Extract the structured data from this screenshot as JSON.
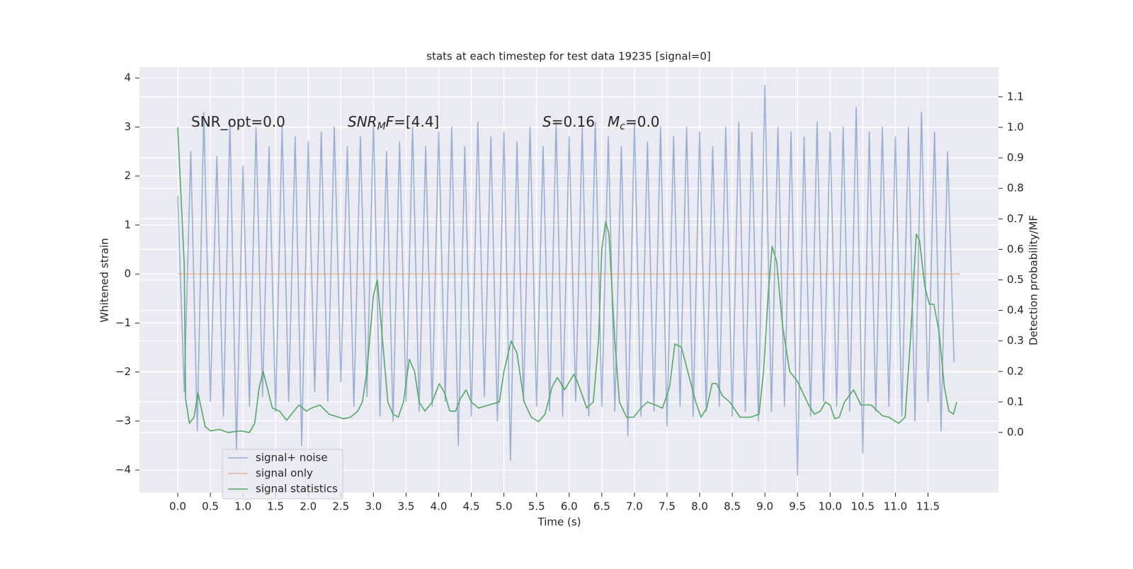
{
  "chart_data": {
    "type": "line",
    "title": "stats at each timestep for test data 19235 [signal=0]",
    "xlabel": "Time (s)",
    "ylabel": "Whitened strain",
    "y2label": "Detection probability/MF",
    "annotations": [
      [
        {
          "text": "SNR_opt=0.0"
        }
      ],
      [
        {
          "text": "SNR",
          "italic": true
        },
        {
          "text": "M",
          "italic": true,
          "sub": true
        },
        {
          "text": "F",
          "italic": true
        },
        {
          "text": "=[4.4]"
        }
      ],
      [
        {
          "text": "S",
          "italic": true
        },
        {
          "text": "=0.16"
        }
      ],
      [
        {
          "text": "M",
          "italic": true
        },
        {
          "text": "c",
          "italic": true,
          "sub": true
        },
        {
          "text": "=0.0"
        }
      ]
    ],
    "xlim": [
      -0.586,
      12.58
    ],
    "ylim": [
      -4.46,
      4.22
    ],
    "y2lim": [
      -0.197,
      1.197
    ],
    "xticks": [
      {
        "value": 0,
        "label": "0.0"
      },
      {
        "value": 0.5,
        "label": "0.5"
      },
      {
        "value": 1,
        "label": "1.0"
      },
      {
        "value": 1.5,
        "label": "1.5"
      },
      {
        "value": 2,
        "label": "2.0"
      },
      {
        "value": 2.5,
        "label": "2.5"
      },
      {
        "value": 3,
        "label": "3.0"
      },
      {
        "value": 3.5,
        "label": "3.5"
      },
      {
        "value": 4,
        "label": "4.0"
      },
      {
        "value": 4.5,
        "label": "4.5"
      },
      {
        "value": 5,
        "label": "5.0"
      },
      {
        "value": 5.5,
        "label": "5.5"
      },
      {
        "value": 6,
        "label": "6.0"
      },
      {
        "value": 6.5,
        "label": "6.5"
      },
      {
        "value": 7,
        "label": "7.0"
      },
      {
        "value": 7.5,
        "label": "7.5"
      },
      {
        "value": 8,
        "label": "8.0"
      },
      {
        "value": 8.5,
        "label": "8.5"
      },
      {
        "value": 9,
        "label": "9.0"
      },
      {
        "value": 9.5,
        "label": "9.5"
      },
      {
        "value": 10,
        "label": "10.0"
      },
      {
        "value": 10.5,
        "label": "10.5"
      },
      {
        "value": 11,
        "label": "11.0"
      },
      {
        "value": 11.5,
        "label": "11.5"
      }
    ],
    "yticks": [
      {
        "value": -4,
        "label": "−4"
      },
      {
        "value": -3,
        "label": "−3"
      },
      {
        "value": -2,
        "label": "−2"
      },
      {
        "value": -1,
        "label": "−1"
      },
      0,
      1,
      2,
      3,
      4
    ],
    "y2ticks": [
      {
        "value": 0,
        "label": "0.0"
      },
      {
        "value": 0.1,
        "label": "0.1"
      },
      {
        "value": 0.2,
        "label": "0.2"
      },
      {
        "value": 0.3,
        "label": "0.3"
      },
      {
        "value": 0.4,
        "label": "0.4"
      },
      {
        "value": 0.5,
        "label": "0.5"
      },
      {
        "value": 0.6,
        "label": "0.6"
      },
      {
        "value": 0.7,
        "label": "0.7"
      },
      {
        "value": 0.8,
        "label": "0.8"
      },
      {
        "value": 0.9,
        "label": "0.9"
      },
      {
        "value": 1,
        "label": "1.0"
      },
      {
        "value": 1.1,
        "label": "1.1"
      }
    ],
    "grid": true,
    "legend": "lower left",
    "series": [
      {
        "name": "signal+ noise",
        "color": "#4c72b0",
        "alpha": 0.5,
        "x": [
          0,
          0.1,
          0.2,
          0.3,
          0.4,
          0.5,
          0.6,
          0.7,
          0.8,
          0.9,
          1,
          1.1,
          1.2,
          1.3,
          1.4,
          1.5,
          1.6,
          1.7,
          1.8,
          1.9,
          2,
          2.1,
          2.2,
          2.3,
          2.4,
          2.5,
          2.6,
          2.7,
          2.8,
          2.9,
          3,
          3.1,
          3.2,
          3.3,
          3.4,
          3.5,
          3.6,
          3.7,
          3.8,
          3.9,
          4,
          4.1,
          4.2,
          4.3,
          4.4,
          4.5,
          4.6,
          4.7,
          4.8,
          4.9,
          5,
          5.1,
          5.2,
          5.3,
          5.4,
          5.5,
          5.6,
          5.7,
          5.8,
          5.9,
          6,
          6.1,
          6.2,
          6.3,
          6.4,
          6.5,
          6.6,
          6.7,
          6.8,
          6.9,
          7,
          7.1,
          7.2,
          7.3,
          7.4,
          7.5,
          7.6,
          7.7,
          7.8,
          7.9,
          8,
          8.1,
          8.2,
          8.3,
          8.4,
          8.5,
          8.6,
          8.7,
          8.8,
          8.9,
          9,
          9.1,
          9.2,
          9.3,
          9.4,
          9.5,
          9.6,
          9.7,
          9.8,
          9.9,
          10,
          10.1,
          10.2,
          10.3,
          10.4,
          10.5,
          10.6,
          10.7,
          10.8,
          10.9,
          11,
          11.1,
          11.2,
          11.3,
          11.4,
          11.5,
          11.6,
          11.7,
          11.8,
          11.9
        ],
        "values": [
          1.6,
          -2.4,
          2.5,
          -3.2,
          3.3,
          -2.6,
          2.4,
          -2.9,
          3.1,
          -3.6,
          2.2,
          -2.7,
          3.0,
          -2.5,
          2.6,
          -2.8,
          3.0,
          -2.6,
          2.8,
          -3.5,
          2.7,
          -2.4,
          2.9,
          -2.6,
          3.0,
          -2.2,
          2.6,
          -2.7,
          2.8,
          -2.5,
          3.1,
          -2.9,
          2.5,
          -3.0,
          2.7,
          -2.6,
          3.0,
          -2.8,
          2.6,
          -2.7,
          2.9,
          -2.6,
          3.0,
          -3.5,
          2.6,
          -2.9,
          3.1,
          -2.5,
          2.8,
          -3.0,
          2.9,
          -3.8,
          2.7,
          -2.6,
          3.0,
          -2.7,
          2.6,
          -2.8,
          3.1,
          -2.9,
          2.8,
          -2.6,
          3.0,
          -2.9,
          3.1,
          -2.7,
          2.8,
          -2.8,
          2.6,
          -3.3,
          3.1,
          -2.9,
          2.7,
          -2.8,
          3.0,
          -3.1,
          2.8,
          -2.7,
          3.0,
          -2.9,
          2.9,
          -2.8,
          2.6,
          -2.7,
          3.0,
          -2.9,
          3.1,
          -2.8,
          2.9,
          -3.0,
          3.85,
          -2.8,
          3.0,
          -2.7,
          2.9,
          -4.1,
          2.8,
          -2.9,
          3.1,
          -2.6,
          2.9,
          -2.7,
          3.0,
          -2.8,
          3.4,
          -3.65,
          2.9,
          -2.8,
          3.0,
          -2.7,
          2.8,
          -2.9,
          3.0,
          -3.0,
          3.3,
          -2.6,
          2.9,
          -3.2,
          2.5,
          -1.8
        ]
      },
      {
        "name": "signal only",
        "color": "#dd8452",
        "alpha": 0.5,
        "x": [
          0,
          11.99
        ],
        "values": [
          0,
          0
        ]
      },
      {
        "name": "signal statistics",
        "color": "#55a868",
        "axis": "y2",
        "x": [
          0,
          0.1,
          0.12,
          0.18,
          0.25,
          0.31,
          0.42,
          0.5,
          0.64,
          0.77,
          0.97,
          1.1,
          1.18,
          1.25,
          1.31,
          1.38,
          1.45,
          1.56,
          1.67,
          1.78,
          1.86,
          1.97,
          2.05,
          2.18,
          2.32,
          2.54,
          2.65,
          2.76,
          2.83,
          2.9,
          3.0,
          3.06,
          3.14,
          3.22,
          3.3,
          3.38,
          3.46,
          3.55,
          3.63,
          3.7,
          3.79,
          3.9,
          4.01,
          4.09,
          4.17,
          4.26,
          4.33,
          4.42,
          4.5,
          4.61,
          4.77,
          4.93,
          5.0,
          5.11,
          5.2,
          5.31,
          5.42,
          5.53,
          5.63,
          5.74,
          5.82,
          5.93,
          6.07,
          6.12,
          6.27,
          6.37,
          6.45,
          6.5,
          6.56,
          6.61,
          6.7,
          6.77,
          6.88,
          6.99,
          7.1,
          7.2,
          7.32,
          7.43,
          7.54,
          7.62,
          7.72,
          7.83,
          7.94,
          8.02,
          8.11,
          8.19,
          8.26,
          8.35,
          8.46,
          8.62,
          8.78,
          8.91,
          8.98,
          9.05,
          9.11,
          9.18,
          9.27,
          9.38,
          9.49,
          9.56,
          9.67,
          9.76,
          9.85,
          9.93,
          10.0,
          10.07,
          10.14,
          10.22,
          10.36,
          10.47,
          10.63,
          10.8,
          10.9,
          11.05,
          11.15,
          11.23,
          11.32,
          11.37,
          11.45,
          11.52,
          11.59,
          11.67,
          11.75,
          11.82,
          11.89,
          11.94
        ],
        "values": [
          1.0,
          0.55,
          0.11,
          0.03,
          0.05,
          0.13,
          0.02,
          0.005,
          0.01,
          0.0,
          0.005,
          0.0,
          0.03,
          0.15,
          0.2,
          0.14,
          0.08,
          0.07,
          0.04,
          0.07,
          0.09,
          0.07,
          0.08,
          0.09,
          0.06,
          0.045,
          0.05,
          0.07,
          0.1,
          0.2,
          0.45,
          0.5,
          0.3,
          0.1,
          0.06,
          0.05,
          0.1,
          0.24,
          0.2,
          0.1,
          0.07,
          0.1,
          0.16,
          0.13,
          0.07,
          0.07,
          0.11,
          0.14,
          0.1,
          0.08,
          0.09,
          0.1,
          0.2,
          0.3,
          0.26,
          0.1,
          0.05,
          0.035,
          0.06,
          0.15,
          0.18,
          0.14,
          0.19,
          0.17,
          0.08,
          0.1,
          0.3,
          0.6,
          0.69,
          0.65,
          0.3,
          0.1,
          0.05,
          0.05,
          0.08,
          0.1,
          0.09,
          0.08,
          0.15,
          0.29,
          0.28,
          0.19,
          0.1,
          0.05,
          0.08,
          0.16,
          0.16,
          0.12,
          0.1,
          0.05,
          0.05,
          0.06,
          0.2,
          0.45,
          0.61,
          0.56,
          0.35,
          0.2,
          0.17,
          0.14,
          0.09,
          0.06,
          0.07,
          0.1,
          0.09,
          0.045,
          0.05,
          0.1,
          0.14,
          0.09,
          0.09,
          0.055,
          0.05,
          0.03,
          0.05,
          0.3,
          0.65,
          0.63,
          0.48,
          0.42,
          0.42,
          0.33,
          0.15,
          0.07,
          0.06,
          0.1
        ]
      }
    ]
  }
}
